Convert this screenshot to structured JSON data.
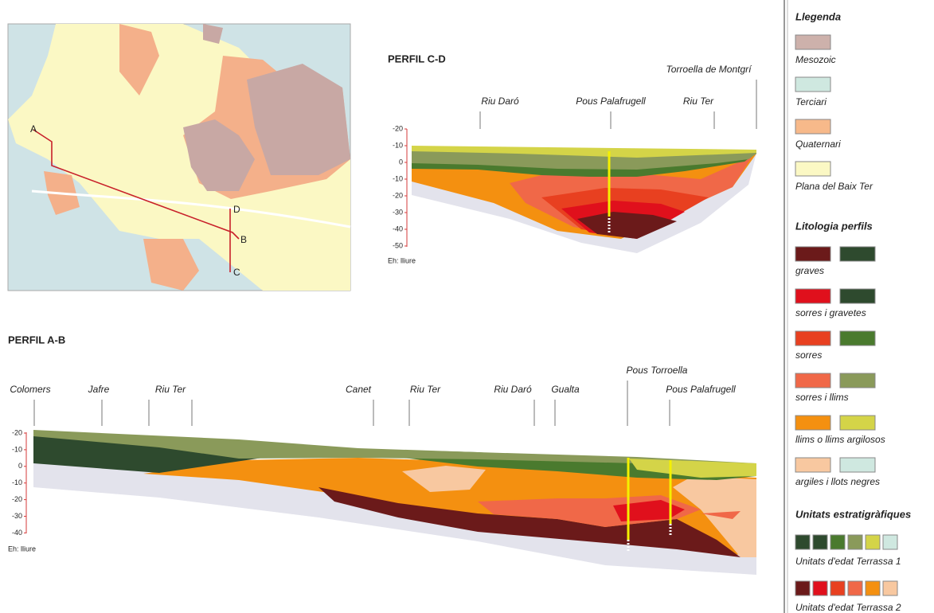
{
  "map": {
    "points": [
      "A",
      "B",
      "C",
      "D"
    ]
  },
  "profile_cd": {
    "title": "PERFIL C-D",
    "labels": [
      "Riu Daró",
      "Pous Palafrugell",
      "Riu Ter",
      "Torroella de Montgrí"
    ],
    "axis": [
      "-20",
      "-10",
      "0",
      "-10",
      "-20",
      "-30",
      "-40",
      "-50"
    ],
    "scale": "Eh: lliure"
  },
  "profile_ab": {
    "title": "PERFIL A-B",
    "labels": [
      "Colomers",
      "Jafre",
      "Riu Ter",
      "Canet",
      "Riu Ter",
      "Riu Daró",
      "Gualta",
      "Pous Torroella",
      "Pous Palafrugell"
    ],
    "axis": [
      "-20",
      "-10",
      "0",
      "-10",
      "-20",
      "-30",
      "-40"
    ],
    "scale": "Eh: lliure"
  },
  "legend": {
    "title": "Llegenda",
    "units": [
      "Mesozoic",
      "Terciari",
      "Quaternari",
      "Plana del Baix Ter"
    ],
    "lithology_title": "Litologia perfils",
    "lithology": [
      "graves",
      "sorres i gravetes",
      "sorres",
      "sorres i llims",
      "llims o llims argilosos",
      "argiles i llots negres"
    ],
    "strat_title": "Unitats estratigràfiques",
    "strat": [
      "Unitats d'edat Terrassa 1",
      "Unitats d'edat Terrassa 2"
    ]
  }
}
